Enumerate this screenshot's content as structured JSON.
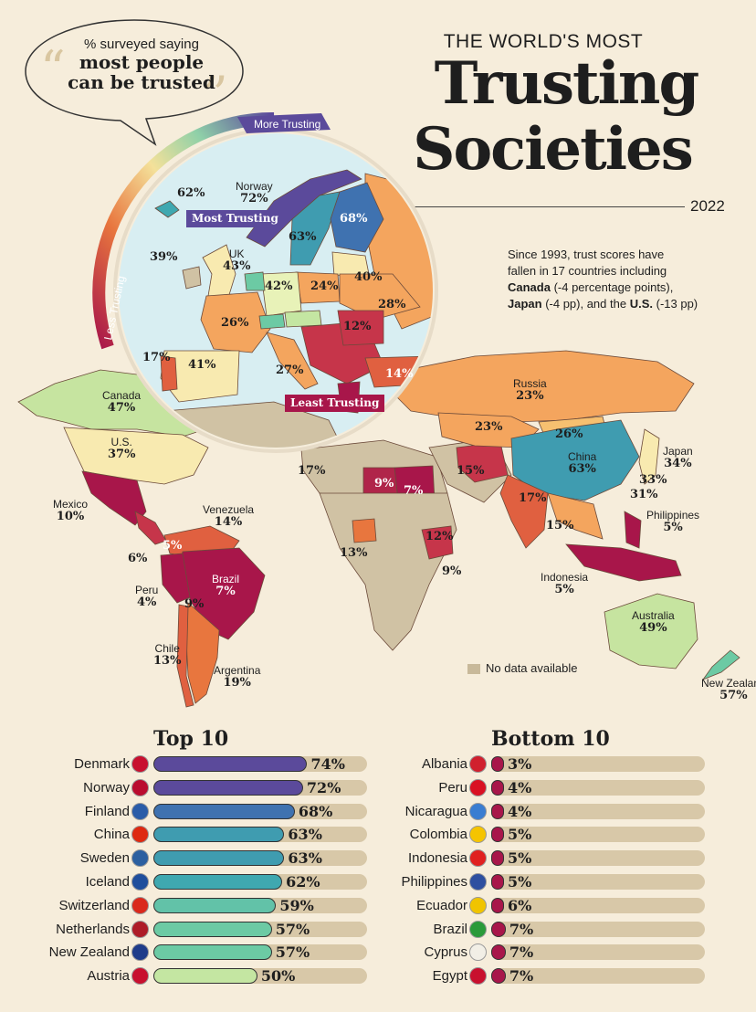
{
  "header": {
    "kicker": "THE WORLD'S MOST",
    "title_line1": "Trusting",
    "title_line2": "Societies",
    "year": "2022"
  },
  "bubble": {
    "line1": "% surveyed saying",
    "line2": "most people",
    "line3": "can be trusted"
  },
  "scale": {
    "more": "More Trusting",
    "less": "Less Trusting"
  },
  "note": {
    "line1": "Since 1993, trust scores have",
    "line2": "fallen in 17 countries including",
    "canada": "Canada",
    "canada_rest": " (-4 percentage points),",
    "japan": "Japan",
    "japan_rest": " (-4 pp), and the ",
    "us": "U.S.",
    "us_rest": " (-13 pp)"
  },
  "europe_tags": {
    "most": "Most Trusting",
    "least": "Least Trusting"
  },
  "legend": {
    "no_data": "No data available"
  },
  "map_labels": [
    {
      "name": "Norway",
      "value": "72%"
    },
    {
      "name": "UK",
      "value": "43%"
    },
    {
      "name": "Canada",
      "value": "47%"
    },
    {
      "name": "U.S.",
      "value": "37%"
    },
    {
      "name": "Mexico",
      "value": "10%"
    },
    {
      "name": "Venezuela",
      "value": "14%"
    },
    {
      "name": "Peru",
      "value": "4%"
    },
    {
      "name": "Brazil",
      "value": "7%"
    },
    {
      "name": "Chile",
      "value": "13%"
    },
    {
      "name": "Argentina",
      "value": "19%"
    },
    {
      "name": "Russia",
      "value": "23%"
    },
    {
      "name": "China",
      "value": "63%"
    },
    {
      "name": "Japan",
      "value": "34%"
    },
    {
      "name": "Philippines",
      "value": "5%"
    },
    {
      "name": "Indonesia",
      "value": "5%"
    },
    {
      "name": "Australia",
      "value": "49%"
    },
    {
      "name": "New Zealand",
      "value": "57%"
    }
  ],
  "map_values": [
    "62%",
    "68%",
    "63%",
    "39%",
    "42%",
    "24%",
    "40%",
    "28%",
    "26%",
    "12%",
    "17%",
    "41%",
    "27%",
    "14%",
    "23%",
    "26%",
    "17%",
    "9%",
    "7%",
    "15%",
    "17%",
    "33%",
    "31%",
    "15%",
    "12%",
    "13%",
    "9%",
    "6%",
    "5%",
    "9%"
  ],
  "top10": {
    "title": "Top 10",
    "items": [
      {
        "country": "Denmark",
        "value": 74,
        "label": "74%",
        "color": "#5b4a9b",
        "flag": "#c8102e"
      },
      {
        "country": "Norway",
        "value": 72,
        "label": "72%",
        "color": "#5b4a9b",
        "flag": "#ba0c2f"
      },
      {
        "country": "Finland",
        "value": 68,
        "label": "68%",
        "color": "#3f72b0",
        "flag": "#2a5ca8"
      },
      {
        "country": "China",
        "value": 63,
        "label": "63%",
        "color": "#3f9cb0",
        "flag": "#de2910"
      },
      {
        "country": "Sweden",
        "value": 63,
        "label": "63%",
        "color": "#3f9cb0",
        "flag": "#2b5fa0"
      },
      {
        "country": "Iceland",
        "value": 62,
        "label": "62%",
        "color": "#3fa8b0",
        "flag": "#1f4e9c"
      },
      {
        "country": "Switzerland",
        "value": 59,
        "label": "59%",
        "color": "#62c2a8",
        "flag": "#da291c"
      },
      {
        "country": "Netherlands",
        "value": 57,
        "label": "57%",
        "color": "#6ccaa4",
        "flag": "#ae1c28"
      },
      {
        "country": "New Zealand",
        "value": 57,
        "label": "57%",
        "color": "#6ccaa4",
        "flag": "#1f3c8a"
      },
      {
        "country": "Austria",
        "value": 50,
        "label": "50%",
        "color": "#c4e6a2",
        "flag": "#c8102e"
      }
    ]
  },
  "bottom10": {
    "title": "Bottom 10",
    "items": [
      {
        "country": "Albania",
        "value": 3,
        "label": "3%",
        "color": "#a8164a",
        "flag": "#d0202e"
      },
      {
        "country": "Peru",
        "value": 4,
        "label": "4%",
        "color": "#a8164a",
        "flag": "#d91023"
      },
      {
        "country": "Nicaragua",
        "value": 4,
        "label": "4%",
        "color": "#a8164a",
        "flag": "#3a7dd1"
      },
      {
        "country": "Colombia",
        "value": 5,
        "label": "5%",
        "color": "#a8164a",
        "flag": "#f5c400"
      },
      {
        "country": "Indonesia",
        "value": 5,
        "label": "5%",
        "color": "#a8164a",
        "flag": "#e02020"
      },
      {
        "country": "Philippines",
        "value": 5,
        "label": "5%",
        "color": "#a8164a",
        "flag": "#2e4fa0"
      },
      {
        "country": "Ecuador",
        "value": 6,
        "label": "6%",
        "color": "#a8164a",
        "flag": "#f0c400"
      },
      {
        "country": "Brazil",
        "value": 7,
        "label": "7%",
        "color": "#a8164a",
        "flag": "#2a9a3a"
      },
      {
        "country": "Cyprus",
        "value": 7,
        "label": "7%",
        "color": "#a8164a",
        "flag": "#f2efe6"
      },
      {
        "country": "Egypt",
        "value": 7,
        "label": "7%",
        "color": "#a8164a",
        "flag": "#c8102e"
      }
    ]
  }
}
